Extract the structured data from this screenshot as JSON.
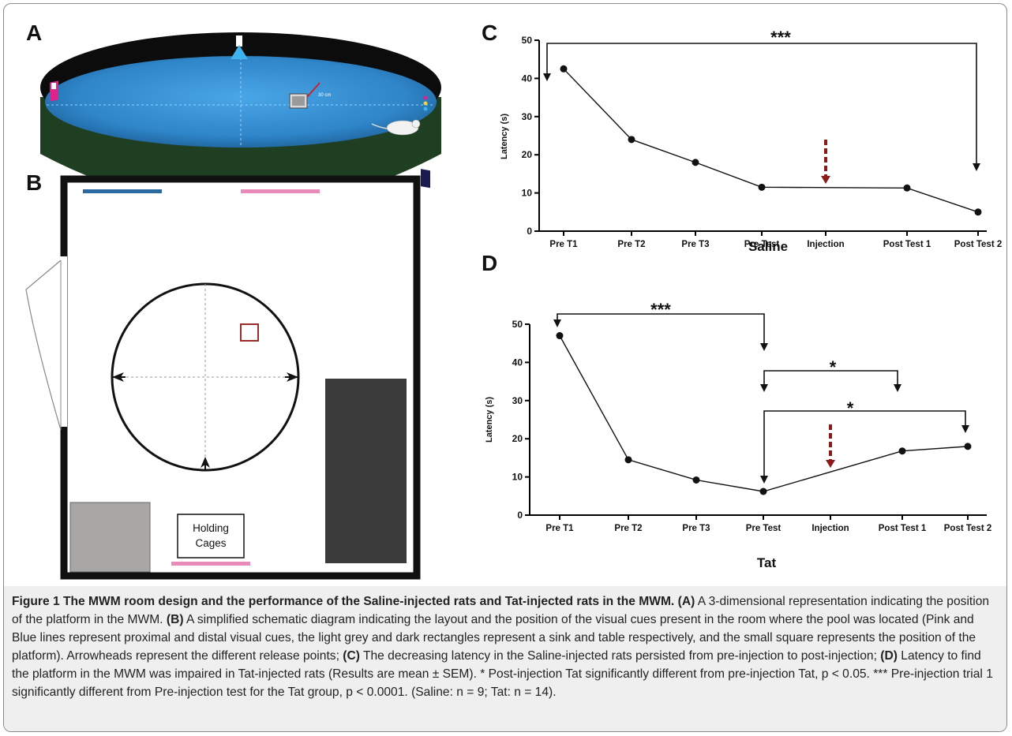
{
  "panels": {
    "A": {
      "label": "A",
      "scale_label": "30 cm"
    },
    "B": {
      "label": "B",
      "holding_line1": "Holding",
      "holding_line2": "Cages"
    },
    "C": {
      "label": "C",
      "significance": "***"
    },
    "D": {
      "label": "D",
      "significance_1": "***",
      "significance_2": "*",
      "significance_3": "*"
    }
  },
  "chart_data": [
    {
      "type": "line",
      "panel": "C",
      "xlabel": "Saline",
      "ylabel": "Latency (s)",
      "ylim": [
        0,
        50
      ],
      "yticks": [
        0,
        10,
        20,
        30,
        40,
        50
      ],
      "categories": [
        "Pre T1",
        "Pre T2",
        "Pre T3",
        "Pre Test",
        "Injection",
        "Post Test 1",
        "Post Test 2"
      ],
      "series": [
        {
          "values": [
            42.5,
            24,
            18,
            11.5,
            null,
            11.3,
            5
          ]
        }
      ],
      "injection_marker": "Injection",
      "annotations": [
        {
          "text": "***",
          "from": "Pre T1",
          "to": "Post Test 2"
        }
      ]
    },
    {
      "type": "line",
      "panel": "D",
      "xlabel": "Tat",
      "ylabel": "Latency (s)",
      "ylim": [
        0,
        50
      ],
      "yticks": [
        0,
        10,
        20,
        30,
        40,
        50
      ],
      "categories": [
        "Pre T1",
        "Pre T2",
        "Pre T3",
        "Pre Test",
        "Injection",
        "Post Test 1",
        "Post Test 2"
      ],
      "series": [
        {
          "values": [
            47,
            14.5,
            9.2,
            6.2,
            null,
            16.8,
            18
          ]
        }
      ],
      "injection_marker": "Injection",
      "annotations": [
        {
          "text": "***",
          "from": "Pre T1",
          "to": "Pre Test"
        },
        {
          "text": "*",
          "from": "Pre Test",
          "to": "Post Test 1"
        },
        {
          "text": "*",
          "from": "Pre Test",
          "to": "Post Test 2"
        }
      ]
    }
  ],
  "caption": {
    "title": "Figure 1 The MWM room design and the performance of the Saline-injected rats and Tat-injected rats in the MWM.",
    "a_tag": "(A)",
    "a_text": "A 3-dimensional representation indicating the position of the platform in the MWM.",
    "b_tag": "(B)",
    "b_text": "A simplified schematic diagram indicating the layout and the position of the visual cues present in the room where the pool was located (Pink and Blue lines represent proximal and distal visual cues, the light grey and dark rectangles represent a sink and table respectively, and the small square represents the position of the platform). Arrowheads represent the different release points;",
    "c_tag": "(C)",
    "c_text": "The decreasing latency in the Saline-injected rats persisted from pre-injection to post-injection;",
    "d_tag": "(D)",
    "d_text": "Latency to find the platform in the MWM was impaired in Tat-injected rats (Results are mean ± SEM). * Post-injection Tat significantly different from pre-injection Tat, p < 0.05. *** Pre-injection trial 1 significantly different from Pre-injection test for the Tat group, p < 0.0001. (Saline: n = 9; Tat: n = 14)."
  },
  "colors": {
    "pool_wall": "#1f3f22",
    "pool_rim": "#0c0c0c",
    "water": "#2f86c9",
    "injection_arrow": "#8b1a1a",
    "pink_cue": "#e98ab8",
    "blue_cue": "#2d6aa1",
    "sink": "#a9a6a6",
    "table": "#3b3b3b",
    "platform_square": "#9b2b2b"
  }
}
